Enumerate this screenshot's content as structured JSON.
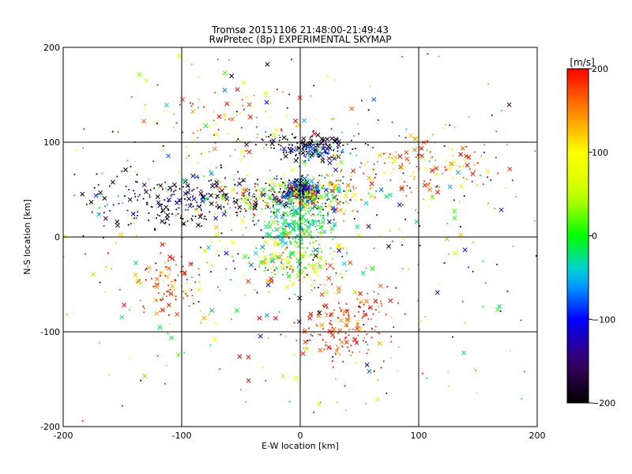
{
  "chart_data": [
    {
      "type": "scatter",
      "title": "Tromsø 20151106 21:48:00-21:49:43",
      "subtitle": "RwPretec (8p) EXPERIMENTAL SKYMAP",
      "xlabel": "E-W location [km]",
      "ylabel": "N-S location [km]",
      "xlim": [
        -200,
        200
      ],
      "ylim": [
        -200,
        200
      ],
      "x_ticks": [
        "-200",
        "-100",
        "0",
        "100",
        "200"
      ],
      "y_ticks": [
        "-200",
        "-100",
        "0",
        "100",
        "200"
      ],
      "grid": true,
      "marker_kinds": [
        "x",
        "dot"
      ],
      "clusters": [
        {
          "x": 0,
          "y": 50,
          "sx": 7,
          "sy": 5,
          "n": 220,
          "vmean": -150,
          "vsd": 50
        },
        {
          "x": 10,
          "y": 45,
          "sx": 22,
          "sy": 10,
          "n": 260,
          "vmean": 20,
          "vsd": 120
        },
        {
          "x": 0,
          "y": 15,
          "sx": 14,
          "sy": 16,
          "n": 260,
          "vmean": -20,
          "vsd": 25
        },
        {
          "x": -5,
          "y": -25,
          "sx": 18,
          "sy": 12,
          "n": 180,
          "vmean": 60,
          "vsd": 70
        },
        {
          "x": 15,
          "y": 90,
          "sx": 16,
          "sy": 6,
          "n": 130,
          "vmean": -120,
          "vsd": 80
        },
        {
          "x": -95,
          "y": 40,
          "sx": 45,
          "sy": 15,
          "n": 260,
          "vmean": -170,
          "vsd": 60
        },
        {
          "x": -30,
          "y": 40,
          "sx": 25,
          "sy": 10,
          "n": 140,
          "vmean": 60,
          "vsd": 110
        },
        {
          "x": 105,
          "y": 75,
          "sx": 35,
          "sy": 15,
          "n": 150,
          "vmean": 150,
          "vsd": 60
        },
        {
          "x": 40,
          "y": -95,
          "sx": 20,
          "sy": 20,
          "n": 170,
          "vmean": 185,
          "vsd": 30
        },
        {
          "x": -110,
          "y": -55,
          "sx": 15,
          "sy": 18,
          "n": 90,
          "vmean": 170,
          "vsd": 40
        },
        {
          "x": -55,
          "y": 120,
          "sx": 35,
          "sy": 20,
          "n": 90,
          "vmean": 150,
          "vsd": 70
        },
        {
          "x": 0,
          "y": 100,
          "sx": 18,
          "sy": 4,
          "n": 70,
          "vmean": -190,
          "vsd": 20
        },
        {
          "x": 0,
          "y": 0,
          "sx": 110,
          "sy": 95,
          "n": 520,
          "vmean": 0,
          "vsd": 140
        }
      ]
    },
    {
      "type": "heatmap",
      "title": "[m/s]",
      "colormap": "rainbow",
      "vlim": [
        -200,
        200
      ],
      "ticks": [
        "200",
        "100",
        "0",
        "−100",
        "−200"
      ],
      "tick_values": [
        200,
        100,
        0,
        -100,
        -200
      ]
    }
  ]
}
